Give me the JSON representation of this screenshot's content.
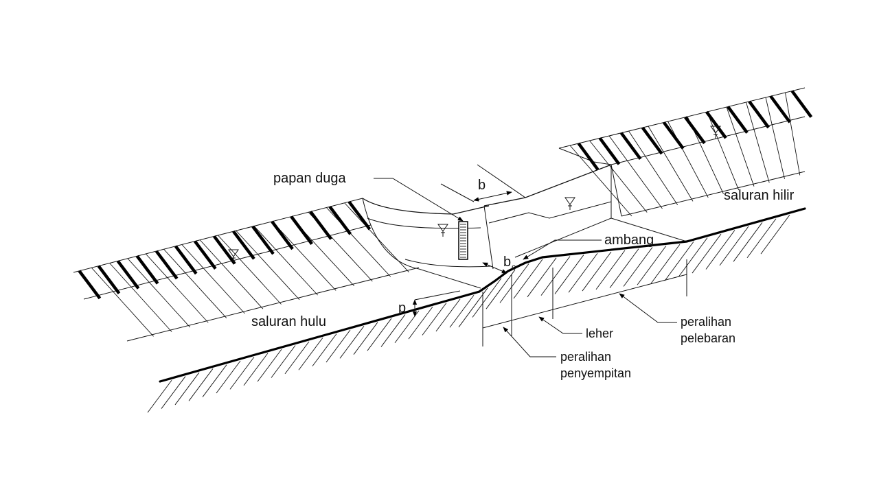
{
  "diagram": {
    "labels": {
      "papan_duga": "papan duga",
      "b": "b",
      "bc_main": "b",
      "bc_sub": "c",
      "ambang": "ambang",
      "saluran_hilir": "saluran hilir",
      "saluran_hulu": "saluran hulu",
      "p": "p",
      "leher": "leher",
      "peralihan_pelebaran_1": "peralihan",
      "peralihan_pelebaran_2": "pelebaran",
      "peralihan_penyempitan_1": "peralihan",
      "peralihan_penyempitan_2": "penyempitan"
    },
    "icons": [
      "water-level-icon",
      "water-level-icon",
      "water-level-icon",
      "water-level-icon"
    ]
  }
}
